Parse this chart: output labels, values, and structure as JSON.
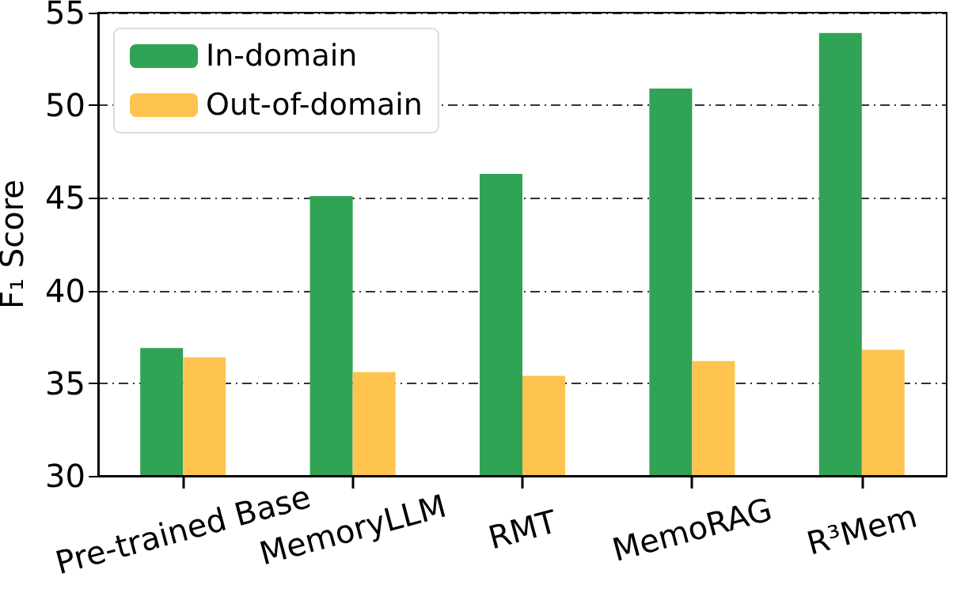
{
  "chart_data": {
    "type": "bar",
    "ylabel": "F₁ Score",
    "categories": [
      "Pre-trained Base",
      "MemoryLLM",
      "RMT",
      "MemoRAG",
      "R³Mem"
    ],
    "series": [
      {
        "name": "In-domain",
        "color": "#31a354",
        "values": [
          36.9,
          45.1,
          46.3,
          50.9,
          53.9
        ]
      },
      {
        "name": "Out-of-domain",
        "color": "#fec44f",
        "values": [
          36.4,
          35.6,
          35.4,
          36.2,
          36.8
        ]
      }
    ],
    "ylim": [
      30,
      55
    ],
    "yticks": [
      30,
      35,
      40,
      45,
      50,
      55
    ],
    "grid": "y",
    "legend": "top left"
  }
}
